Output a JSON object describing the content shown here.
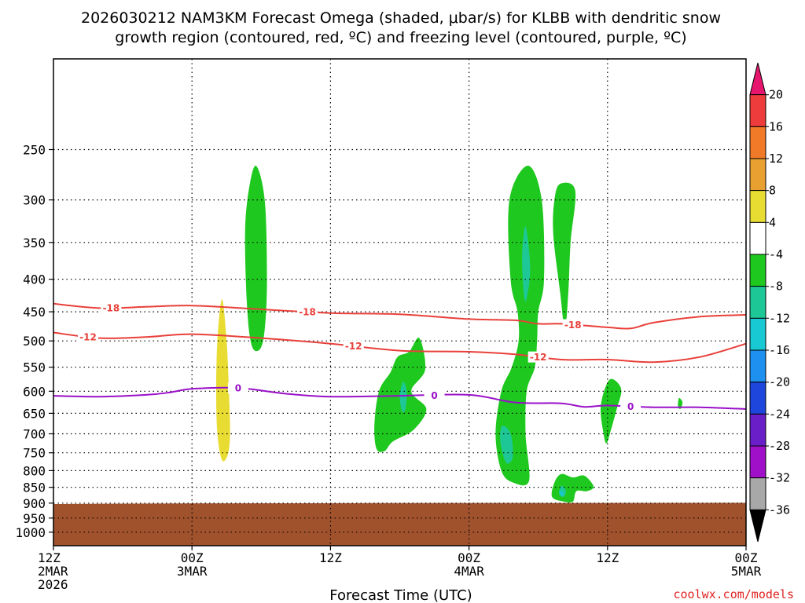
{
  "chart_data": {
    "type": "time-height-contour",
    "title_lines": [
      "2026030212 NAM3KM Forecast Omega (shaded, μbar/s) for KLBB with dendritic snow",
      "growth region (contoured, red, ºC) and freezing level (contoured, purple, ºC)"
    ],
    "xlabel": "Forecast Time (UTC)",
    "credit": "coolwx.com/models",
    "x_range_hours": [
      0,
      60
    ],
    "y_scale": "log-pressure",
    "y_range_mb": [
      180,
      1050
    ],
    "y_ticks": [
      250,
      300,
      350,
      400,
      450,
      500,
      550,
      600,
      650,
      700,
      750,
      800,
      850,
      900,
      950,
      1000
    ],
    "x_ticks": [
      {
        "hour": 0,
        "lines": [
          "12Z",
          "2MAR",
          "2026"
        ]
      },
      {
        "hour": 12,
        "lines": [
          "00Z",
          "3MAR"
        ]
      },
      {
        "hour": 24,
        "lines": [
          "12Z"
        ]
      },
      {
        "hour": 36,
        "lines": [
          "00Z",
          "4MAR"
        ]
      },
      {
        "hour": 48,
        "lines": [
          "12Z"
        ]
      },
      {
        "hour": 60,
        "lines": [
          "00Z",
          "5MAR"
        ]
      }
    ],
    "colorbar": {
      "labels": [
        "20",
        "16",
        "12",
        "8",
        "4",
        "-4",
        "-8",
        "-12",
        "-16",
        "-20",
        "-24",
        "-28",
        "-32",
        "-36"
      ],
      "colors": [
        "#e6156e",
        "#ee3c3c",
        "#f07a28",
        "#e8a030",
        "#e8dc32",
        "#ffffff",
        "#1ec81e",
        "#1ec896",
        "#18c8d2",
        "#1e90f0",
        "#1e46dc",
        "#6a1ec8",
        "#a010c8",
        "#a8a8a8",
        "#000000"
      ]
    },
    "ground": {
      "color": "#a0522d",
      "top_mb": [
        [
          0,
          903
        ],
        [
          10,
          901
        ],
        [
          30,
          900
        ],
        [
          60,
          899
        ]
      ]
    },
    "contours": [
      {
        "label": "-18",
        "color": "#e8403a",
        "points": [
          [
            0,
            437
          ],
          [
            4,
            444
          ],
          [
            8,
            442
          ],
          [
            12,
            440
          ],
          [
            18,
            446
          ],
          [
            24,
            452
          ],
          [
            30,
            454
          ],
          [
            36,
            462
          ],
          [
            40,
            464
          ],
          [
            42,
            470
          ],
          [
            44,
            470
          ],
          [
            48,
            476
          ],
          [
            50,
            478
          ],
          [
            52,
            468
          ],
          [
            56,
            458
          ],
          [
            60,
            455
          ]
        ],
        "label_hours": [
          5,
          22,
          45
        ]
      },
      {
        "label": "-12",
        "color": "#e8403a",
        "points": [
          [
            0,
            485
          ],
          [
            4,
            495
          ],
          [
            8,
            493
          ],
          [
            12,
            488
          ],
          [
            18,
            495
          ],
          [
            24,
            505
          ],
          [
            30,
            518
          ],
          [
            36,
            520
          ],
          [
            40,
            525
          ],
          [
            44,
            535
          ],
          [
            48,
            535
          ],
          [
            52,
            540
          ],
          [
            56,
            530
          ],
          [
            60,
            505
          ]
        ],
        "label_hours": [
          3,
          26,
          42
        ]
      },
      {
        "label": "0",
        "color": "#9a10c8",
        "points": [
          [
            0,
            610
          ],
          [
            4,
            612
          ],
          [
            8,
            608
          ],
          [
            10,
            603
          ],
          [
            12,
            595
          ],
          [
            16,
            593
          ],
          [
            20,
            605
          ],
          [
            24,
            612
          ],
          [
            30,
            610
          ],
          [
            36,
            608
          ],
          [
            40,
            625
          ],
          [
            44,
            627
          ],
          [
            46,
            635
          ],
          [
            48,
            632
          ],
          [
            52,
            636
          ],
          [
            56,
            636
          ],
          [
            60,
            640
          ]
        ],
        "label_hours": [
          16,
          33,
          50
        ]
      }
    ],
    "omega_regions": [
      {
        "color": "#e8dc32",
        "value_range": [
          4,
          8
        ],
        "outline": [
          [
            14.6,
            430
          ],
          [
            15.0,
            500
          ],
          [
            15.2,
            600
          ],
          [
            15.3,
            700
          ],
          [
            15.1,
            755
          ],
          [
            14.6,
            770
          ],
          [
            14.2,
            700
          ],
          [
            14.1,
            600
          ],
          [
            14.2,
            500
          ]
        ]
      },
      {
        "color": "#1ec81e",
        "value_range": [
          -8,
          -4
        ],
        "outline": [
          [
            17.5,
            265
          ],
          [
            18.3,
            300
          ],
          [
            18.5,
            400
          ],
          [
            18.3,
            480
          ],
          [
            17.9,
            515
          ],
          [
            17.2,
            510
          ],
          [
            16.8,
            450
          ],
          [
            16.6,
            350
          ],
          [
            16.8,
            300
          ]
        ]
      },
      {
        "color": "#1ec81e",
        "value_range": [
          -8,
          -4
        ],
        "outline": [
          [
            29.8,
            530
          ],
          [
            30.8,
            520
          ],
          [
            31.7,
            495
          ],
          [
            32.2,
            555
          ],
          [
            31.0,
            600
          ],
          [
            32.3,
            640
          ],
          [
            31.2,
            690
          ],
          [
            29.4,
            720
          ],
          [
            28.7,
            745
          ],
          [
            28.0,
            740
          ],
          [
            27.8,
            680
          ],
          [
            28.2,
            600
          ],
          [
            29.2,
            560
          ]
        ]
      },
      {
        "color": "#1ec896",
        "value_range": [
          -12,
          -8
        ],
        "outline": [
          [
            30.3,
            580
          ],
          [
            30.6,
            600
          ],
          [
            30.5,
            640
          ],
          [
            30.2,
            645
          ],
          [
            30.0,
            610
          ]
        ]
      },
      {
        "color": "#1ec81e",
        "value_range": [
          -8,
          -4
        ],
        "outline": [
          [
            41.1,
            265
          ],
          [
            42.3,
            300
          ],
          [
            42.5,
            400
          ],
          [
            42.0,
            450
          ],
          [
            41.9,
            500
          ],
          [
            41.7,
            550
          ],
          [
            41.0,
            600
          ],
          [
            40.9,
            700
          ],
          [
            41.2,
            830
          ],
          [
            39.8,
            835
          ],
          [
            38.8,
            800
          ],
          [
            38.3,
            700
          ],
          [
            38.8,
            600
          ],
          [
            39.7,
            550
          ],
          [
            40.3,
            500
          ],
          [
            40.2,
            450
          ],
          [
            39.6,
            400
          ],
          [
            39.5,
            300
          ]
        ]
      },
      {
        "color": "#1ec896",
        "value_range": [
          -12,
          -8
        ],
        "outline": [
          [
            40.9,
            330
          ],
          [
            41.3,
            380
          ],
          [
            41.1,
            420
          ],
          [
            40.8,
            430
          ],
          [
            40.6,
            370
          ]
        ]
      },
      {
        "color": "#1ec896",
        "value_range": [
          -12,
          -8
        ],
        "outline": [
          [
            38.9,
            680
          ],
          [
            39.6,
            700
          ],
          [
            39.8,
            760
          ],
          [
            39.3,
            780
          ],
          [
            38.9,
            750
          ],
          [
            38.7,
            710
          ]
        ]
      },
      {
        "color": "#1ec81e",
        "value_range": [
          -8,
          -4
        ],
        "outline": [
          [
            43.9,
            283
          ],
          [
            45.2,
            290
          ],
          [
            44.8,
            350
          ],
          [
            44.6,
            420
          ],
          [
            44.3,
            480
          ],
          [
            43.9,
            420
          ],
          [
            43.3,
            340
          ],
          [
            43.4,
            300
          ]
        ]
      },
      {
        "color": "#1ec81e",
        "value_range": [
          -8,
          -4
        ],
        "outline": [
          [
            44.0,
            810
          ],
          [
            45.0,
            820
          ],
          [
            46.0,
            815
          ],
          [
            46.8,
            848
          ],
          [
            46.2,
            862
          ],
          [
            45.3,
            862
          ],
          [
            45.0,
            895
          ],
          [
            44.2,
            895
          ],
          [
            43.2,
            880
          ],
          [
            43.4,
            835
          ]
        ]
      },
      {
        "color": "#1ec896",
        "value_range": [
          -12,
          -8
        ],
        "outline": [
          [
            44.0,
            845
          ],
          [
            44.4,
            860
          ],
          [
            44.2,
            880
          ],
          [
            43.8,
            870
          ]
        ]
      },
      {
        "color": "#18c8d2",
        "value_range": [
          -16,
          -12
        ],
        "outline": [
          [
            44.0,
            860
          ],
          [
            44.2,
            870
          ],
          [
            44.0,
            878
          ],
          [
            43.9,
            868
          ]
        ]
      },
      {
        "color": "#1ec81e",
        "value_range": [
          -8,
          -4
        ],
        "outline": [
          [
            48.2,
            575
          ],
          [
            48.8,
            580
          ],
          [
            49.2,
            600
          ],
          [
            48.8,
            640
          ],
          [
            48.3,
            690
          ],
          [
            47.9,
            725
          ],
          [
            47.6,
            690
          ],
          [
            47.4,
            640
          ],
          [
            47.7,
            600
          ]
        ]
      },
      {
        "color": "#1ec81e",
        "value_range": [
          -8,
          -4
        ],
        "outline": [
          [
            54.2,
            615
          ],
          [
            54.5,
            625
          ],
          [
            54.3,
            640
          ],
          [
            54.1,
            632
          ]
        ]
      }
    ]
  }
}
